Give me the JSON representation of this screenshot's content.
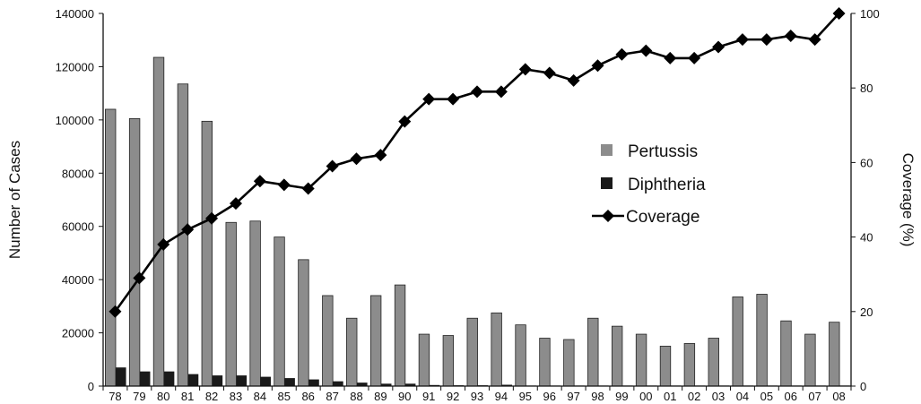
{
  "chart_data": {
    "type": "bar",
    "categories": [
      "78",
      "79",
      "80",
      "81",
      "82",
      "83",
      "84",
      "85",
      "86",
      "87",
      "88",
      "89",
      "90",
      "91",
      "92",
      "93",
      "94",
      "95",
      "96",
      "97",
      "98",
      "99",
      "00",
      "01",
      "02",
      "03",
      "04",
      "05",
      "06",
      "07",
      "08"
    ],
    "series": [
      {
        "name": "Pertussis",
        "kind": "bar",
        "axis": "left",
        "color": "#8c8c8c",
        "values": [
          104000,
          100500,
          123500,
          113500,
          99500,
          61500,
          62000,
          56000,
          47500,
          34000,
          25500,
          34000,
          38000,
          19500,
          19000,
          25500,
          27500,
          23000,
          18000,
          17500,
          25500,
          22500,
          19500,
          15000,
          16000,
          18000,
          33500,
          34500,
          24500,
          19500,
          24000
        ]
      },
      {
        "name": "Diphtheria",
        "kind": "bar",
        "axis": "left",
        "color": "#1a1a1a",
        "values": [
          7000,
          5500,
          5500,
          4500,
          4000,
          4000,
          3500,
          3000,
          2500,
          1800,
          1300,
          900,
          900,
          400,
          300,
          300,
          500,
          200,
          100,
          100,
          200,
          100,
          100,
          50,
          50,
          50,
          50,
          50,
          50,
          50,
          50
        ]
      },
      {
        "name": "Coverage",
        "kind": "line",
        "axis": "right",
        "color": "#000000",
        "marker": "diamond",
        "values": [
          20,
          29,
          38,
          42,
          45,
          49,
          55,
          54,
          53,
          59,
          61,
          62,
          71,
          77,
          77,
          79,
          79,
          85,
          84,
          82,
          86,
          89,
          90,
          88,
          88,
          91,
          93,
          93,
          94,
          93,
          100
        ]
      }
    ],
    "title": "",
    "xlabel": "",
    "ylabel": "Number of Cases",
    "y2label": "Coverage (%)",
    "ylim": [
      0,
      140000
    ],
    "y2lim": [
      0,
      100
    ],
    "yticks": [
      "0",
      "20000",
      "40000",
      "60000",
      "80000",
      "100000",
      "120000",
      "140000"
    ],
    "y2ticks": [
      "0",
      "20",
      "40",
      "60",
      "80",
      "100"
    ],
    "grid": false,
    "legend": {
      "placement": "center-right"
    }
  }
}
